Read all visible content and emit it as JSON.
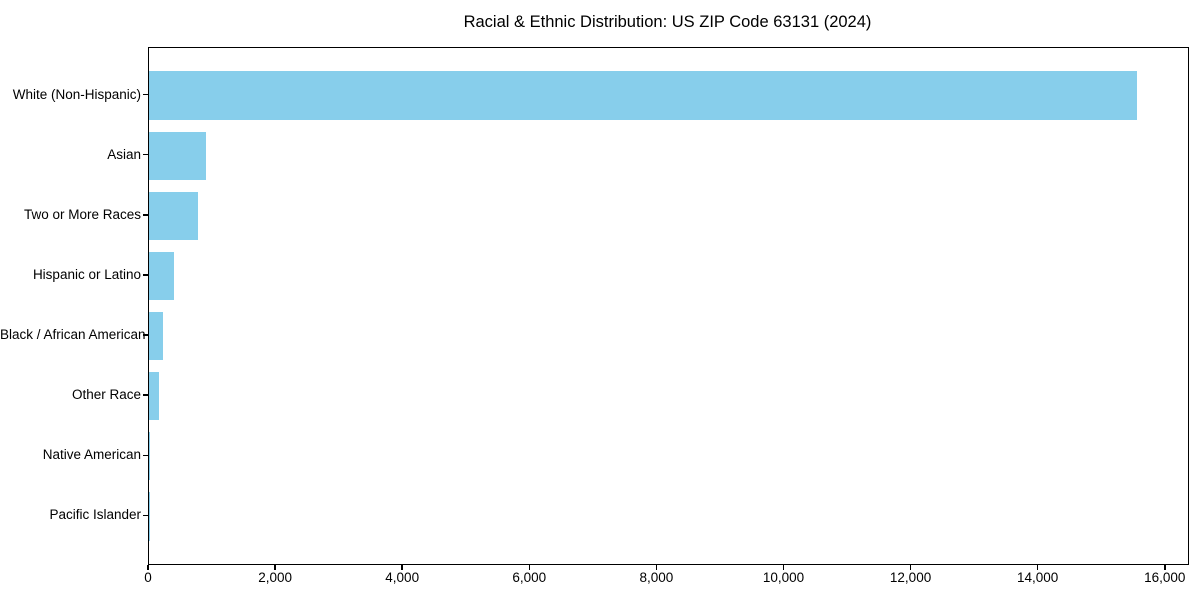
{
  "title": "Racial & Ethnic Distribution: US ZIP Code 63131 (2024)",
  "chart_data": {
    "type": "bar",
    "orientation": "horizontal",
    "title": "Racial & Ethnic Distribution: US ZIP Code 63131 (2024)",
    "categories": [
      "White (Non-Hispanic)",
      "Asian",
      "Two or More Races",
      "Hispanic or Latino",
      "Black / African American",
      "Other Race",
      "Native American",
      "Pacific Islander"
    ],
    "values": [
      15540,
      900,
      770,
      400,
      215,
      165,
      10,
      5
    ],
    "xlabel": "",
    "ylabel": "",
    "xlim": [
      0,
      16350
    ],
    "xticks": [
      0,
      2000,
      4000,
      6000,
      8000,
      10000,
      12000,
      14000,
      16000
    ],
    "xtick_labels": [
      "0",
      "2,000",
      "4,000",
      "6,000",
      "8,000",
      "10,000",
      "12,000",
      "14,000",
      "16,000"
    ],
    "bar_color": "#87CEEB",
    "grid": false,
    "legend": null,
    "background_color": "#ffffff",
    "axis_color": "#000000"
  }
}
